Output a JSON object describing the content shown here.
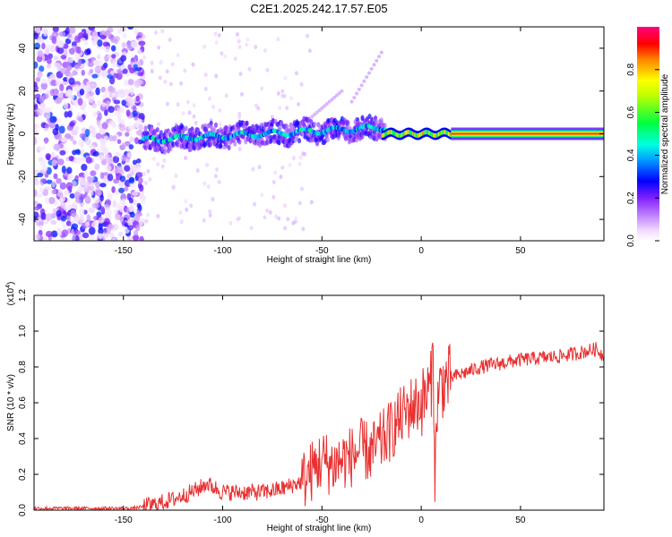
{
  "title": "C2E1.2025.242.17.57.E05",
  "chart_data": [
    {
      "type": "heatmap",
      "name": "spectrogram",
      "xlabel": "Height of straight line (km)",
      "ylabel": "Frequency (Hz)",
      "xlim": [
        -195,
        92
      ],
      "ylim": [
        -50,
        50
      ],
      "xticks": [
        -150,
        -100,
        -50,
        0,
        50
      ],
      "yticks": [
        -40,
        -20,
        0,
        20,
        40
      ],
      "colorbar": {
        "label": "Normalized spectral amplitude",
        "range": [
          0,
          1
        ],
        "ticks": [
          0.0,
          0.2,
          0.4,
          0.6,
          0.8
        ],
        "tick_labels": [
          "0.0",
          "0.2",
          "0.4",
          "0.6",
          "0.8"
        ],
        "colormap": [
          "#ffffff",
          "#e8c8ff",
          "#8020ff",
          "#0000ff",
          "#00e0ff",
          "#00ff40",
          "#ffff00",
          "#ff8000",
          "#ff0000"
        ]
      },
      "features": [
        {
          "x_range": [
            -195,
            -140
          ],
          "freq_range": [
            -50,
            50
          ],
          "amplitude": 0.15,
          "desc": "broadband noise"
        },
        {
          "x_range": [
            -140,
            -20
          ],
          "freq_center_start": -3,
          "freq_center_end": 3,
          "amplitude": 0.4
        },
        {
          "x_range": [
            -20,
            15
          ],
          "freq_center": 0,
          "amplitude": 0.7
        },
        {
          "x_range": [
            15,
            92
          ],
          "freq_center": 0,
          "amplitude": 0.9
        }
      ]
    },
    {
      "type": "line",
      "name": "snr",
      "xlabel": "Height of straight line (km)",
      "ylabel": "SNR (10 * v/v)",
      "multiplier_label": "(x10",
      "multiplier_exp": "4",
      "xlim": [
        -195,
        92
      ],
      "ylim": [
        0,
        1.2
      ],
      "xticks": [
        -150,
        -100,
        -50,
        0,
        50
      ],
      "yticks": [
        0.0,
        0.2,
        0.4,
        0.6,
        0.8,
        1.0,
        1.2
      ],
      "ytick_labels": [
        "0.0",
        "0.2",
        "0.4",
        "0.6",
        "0.8",
        "1.0",
        "1.2"
      ],
      "color": "#e83030",
      "series": [
        {
          "name": "SNR",
          "x": [
            -195,
            -180,
            -160,
            -145,
            -135,
            -125,
            -118,
            -112,
            -108,
            -100,
            -90,
            -80,
            -70,
            -60,
            -55,
            -50,
            -45,
            -40,
            -35,
            -30,
            -25,
            -20,
            -15,
            -10,
            -5,
            0,
            3,
            5,
            6,
            7,
            8,
            10,
            15,
            20,
            25,
            30,
            40,
            50,
            60,
            70,
            80,
            88,
            92
          ],
          "y": [
            0.01,
            0.01,
            0.01,
            0.01,
            0.03,
            0.06,
            0.09,
            0.12,
            0.15,
            0.1,
            0.1,
            0.1,
            0.12,
            0.16,
            0.22,
            0.28,
            0.25,
            0.28,
            0.3,
            0.34,
            0.32,
            0.38,
            0.45,
            0.52,
            0.58,
            0.6,
            0.65,
            0.7,
            0.9,
            0.15,
            0.6,
            0.7,
            0.74,
            0.76,
            0.78,
            0.8,
            0.82,
            0.84,
            0.85,
            0.86,
            0.88,
            0.9,
            0.86
          ]
        }
      ]
    }
  ]
}
